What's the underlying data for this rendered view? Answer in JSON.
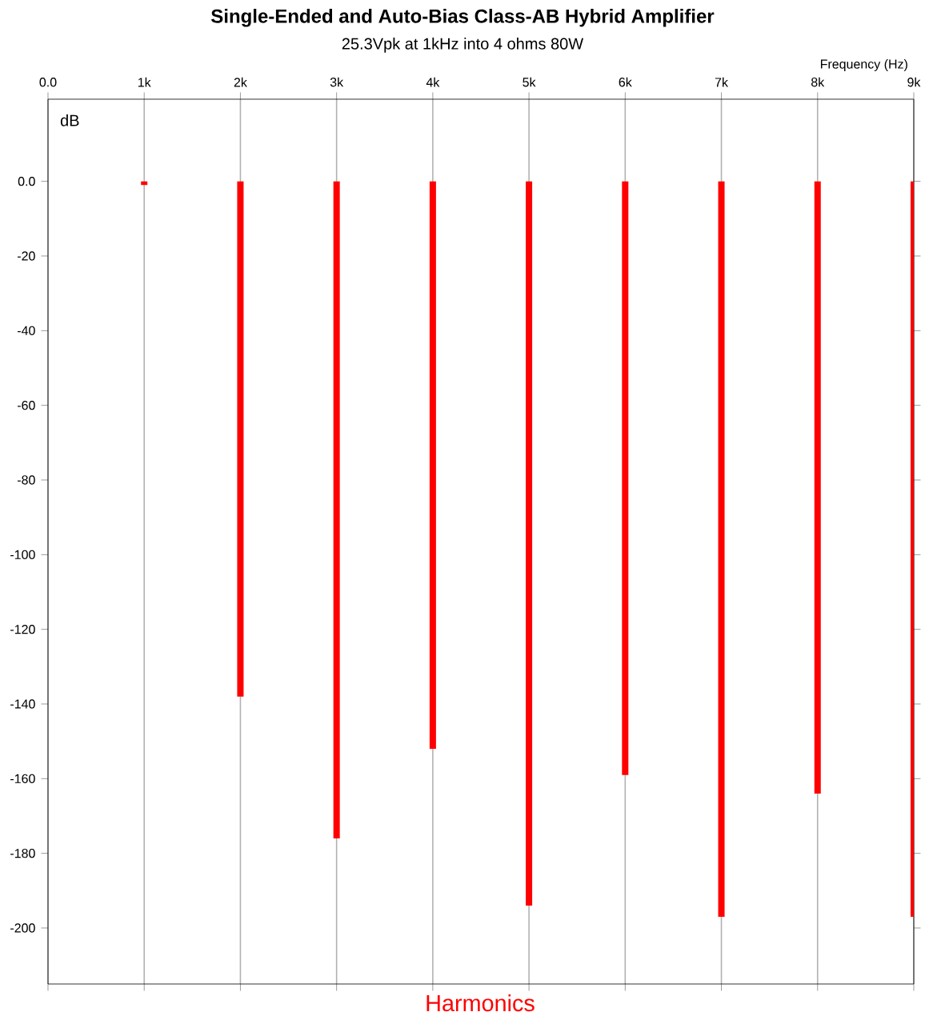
{
  "chart_data": {
    "type": "bar",
    "title": "Single-Ended and Auto-Bias Class-AB Hybrid Amplifier",
    "subtitle": "25.3Vpk at 1kHz into 4 ohms 80W",
    "xlabel": "Frequency  (Hz)",
    "ylabel": "dB",
    "x": [
      1,
      2,
      3,
      4,
      5,
      6,
      7,
      8,
      9
    ],
    "values": [
      -1,
      -138,
      -176,
      -152,
      -194,
      -159,
      -197,
      -164,
      -197
    ],
    "color": "#ff0000",
    "xlim": [
      0,
      9
    ],
    "xticks": [
      {
        "value": 0,
        "label": "0.0"
      },
      {
        "value": 1,
        "label": "1k"
      },
      {
        "value": 2,
        "label": "2k"
      },
      {
        "value": 3,
        "label": "3k"
      },
      {
        "value": 4,
        "label": "4k"
      },
      {
        "value": 5,
        "label": "5k"
      },
      {
        "value": 6,
        "label": "6k"
      },
      {
        "value": 7,
        "label": "7k"
      },
      {
        "value": 8,
        "label": "8k"
      },
      {
        "value": 9,
        "label": "9k"
      }
    ],
    "ylim": [
      -215,
      22
    ],
    "yticks": [
      {
        "value": 0,
        "label": "0.0"
      },
      -20,
      -40,
      -60,
      -80,
      -100,
      -120,
      -140,
      -160,
      -180,
      -200
    ],
    "grid": "x",
    "annotations": [
      "Harmonics"
    ]
  }
}
